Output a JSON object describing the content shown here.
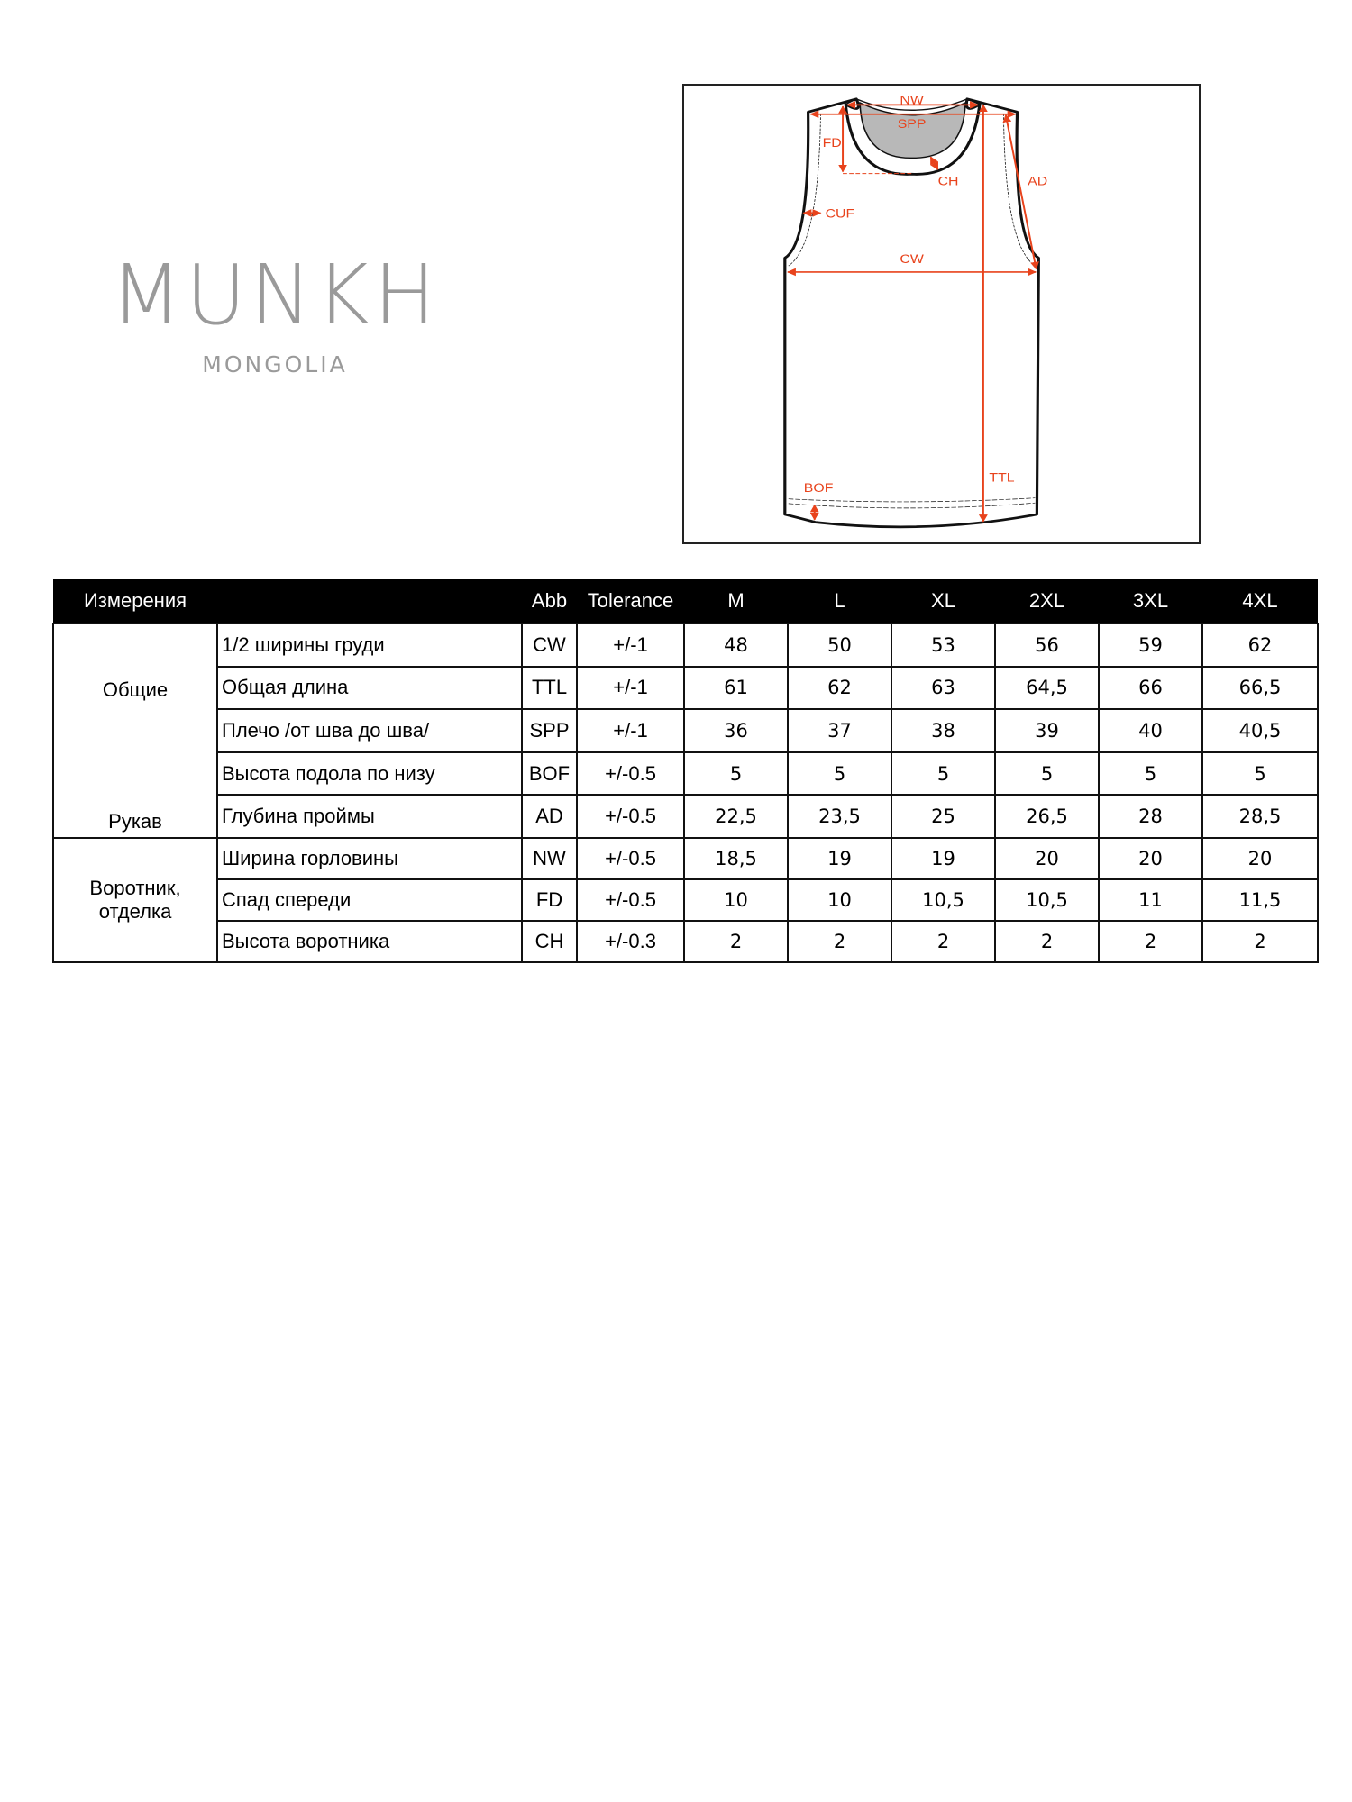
{
  "logo": {
    "brand": "MUNKH",
    "sub": "MONGOLIA"
  },
  "diagram": {
    "labels": {
      "nw": "NW",
      "spp": "SPP",
      "fd": "FD",
      "ch": "CH",
      "ad": "AD",
      "cuf": "CUF",
      "cw": "CW",
      "ttl": "TTL",
      "bof": "BOF"
    },
    "accent_color": "#e8431c"
  },
  "table": {
    "headers": [
      "Измерения",
      "",
      "Abb",
      "Tolerance",
      "M",
      "L",
      "XL",
      "2XL",
      "3XL",
      "4XL"
    ],
    "groups": {
      "general": "Общие",
      "sleeve": "Рукав",
      "collar_line1": "Воротник,",
      "collar_line2": "отделка"
    },
    "rows": [
      {
        "name": "1/2 ширины груди",
        "abb": "CW",
        "tol": "+/-1",
        "values": [
          "48",
          "50",
          "53",
          "56",
          "59",
          "62"
        ]
      },
      {
        "name": "Общая длина",
        "abb": "TTL",
        "tol": "+/-1",
        "values": [
          "61",
          "62",
          "63",
          "64,5",
          "66",
          "66,5"
        ]
      },
      {
        "name": "Плечо /от шва до шва/",
        "abb": "SPP",
        "tol": "+/-1",
        "values": [
          "36",
          "37",
          "38",
          "39",
          "40",
          "40,5"
        ]
      },
      {
        "name": "Высота подола по низу",
        "abb": "BOF",
        "tol": "+/-0.5",
        "values": [
          "5",
          "5",
          "5",
          "5",
          "5",
          "5"
        ]
      },
      {
        "name": "Глубина проймы",
        "abb": "AD",
        "tol": "+/-0.5",
        "values": [
          "22,5",
          "23,5",
          "25",
          "26,5",
          "28",
          "28,5"
        ]
      },
      {
        "name": "Ширина горловины",
        "abb": "NW",
        "tol": "+/-0.5",
        "values": [
          "18,5",
          "19",
          "19",
          "20",
          "20",
          "20"
        ]
      },
      {
        "name": "Спад спереди",
        "abb": "FD",
        "tol": "+/-0.5",
        "values": [
          "10",
          "10",
          "10,5",
          "10,5",
          "11",
          "11,5"
        ]
      },
      {
        "name": "Высота воротника",
        "abb": "CH",
        "tol": "+/-0.3",
        "values": [
          "2",
          "2",
          "2",
          "2",
          "2",
          "2"
        ]
      }
    ]
  }
}
